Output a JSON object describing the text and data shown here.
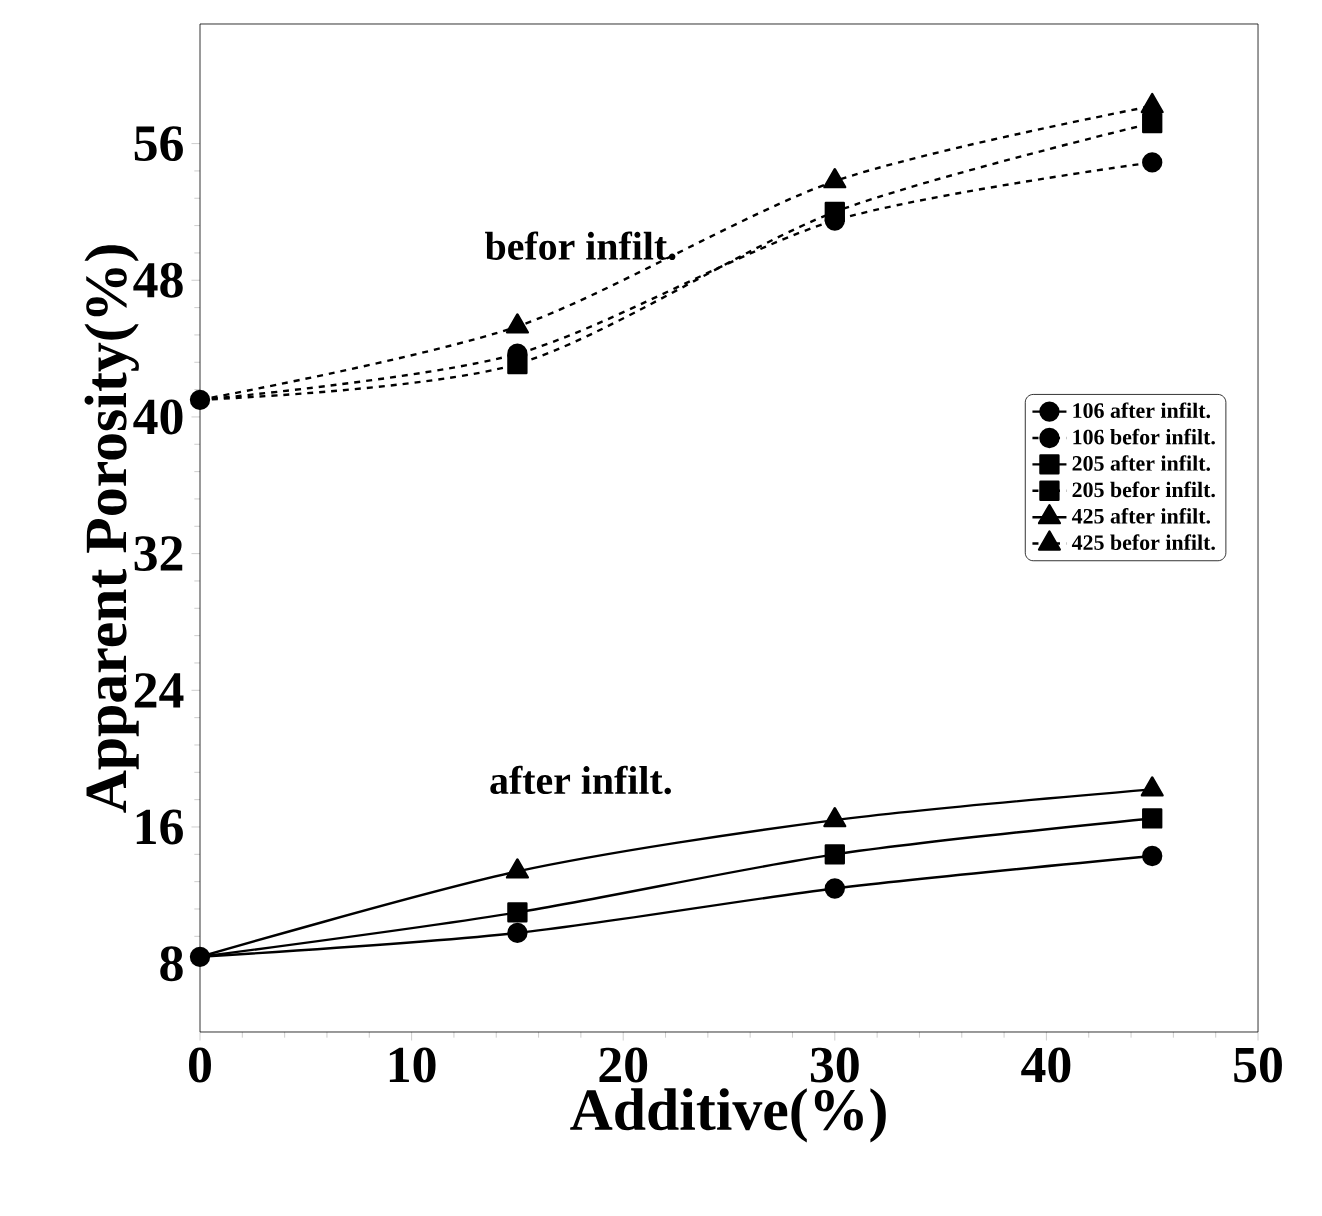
{
  "chart_data": {
    "type": "line",
    "xlabel": "Additive(%)",
    "ylabel": "Apparent Porosity(%)",
    "x": [
      0,
      15,
      30,
      45
    ],
    "series": [
      {
        "name": "106 after infilt.",
        "color": "#000000",
        "marker": "circle",
        "line_style": "solid",
        "values": [
          8.4,
          9.8,
          12.4,
          14.3
        ]
      },
      {
        "name": "106 befor infilt.",
        "color": "#000000",
        "marker": "circle",
        "line_style": "dashed",
        "values": [
          41,
          43.7,
          51.5,
          54.9
        ]
      },
      {
        "name": "205 after infilt.",
        "color": "#000000",
        "marker": "square",
        "line_style": "solid",
        "values": [
          8.4,
          11,
          14.4,
          16.5
        ]
      },
      {
        "name": "205 befor infilt.",
        "color": "#000000",
        "marker": "square",
        "line_style": "dashed",
        "values": [
          41,
          43.1,
          52,
          57.2
        ]
      },
      {
        "name": "425 after infilt.",
        "color": "#000000",
        "marker": "triangle",
        "line_style": "solid",
        "values": [
          8.4,
          13.4,
          16.4,
          18.2
        ]
      },
      {
        "name": "425 befor infilt.",
        "color": "#000000",
        "marker": "triangle",
        "line_style": "dashed",
        "values": [
          41,
          45.3,
          53.8,
          58.2
        ]
      }
    ],
    "xlim": [
      0,
      50
    ],
    "xticks": [
      0,
      10,
      20,
      30,
      40,
      50
    ],
    "ylim": [
      4,
      63
    ],
    "yticks": [
      8,
      16,
      24,
      32,
      40,
      48,
      56
    ],
    "annotations": [
      "befor infilt.",
      "after infilt."
    ],
    "legend": "right",
    "grid": false
  }
}
